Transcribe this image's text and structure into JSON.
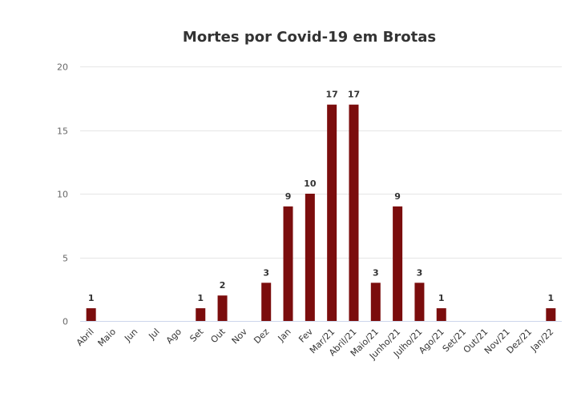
{
  "chart_data": {
    "type": "bar",
    "title": "Mortes por Covid-19 em Brotas",
    "xlabel": "",
    "ylabel": "",
    "ylim": [
      0,
      20
    ],
    "yticks": [
      0,
      5,
      10,
      15,
      20
    ],
    "grid": true,
    "categories": [
      "Abril",
      "Maio",
      "Jun",
      "Jul",
      "Ago",
      "Set",
      "Out",
      "Nov",
      "Dez",
      "Jan",
      "Fev",
      "Mar/21",
      "Abril/21",
      "Maio/21",
      "Junho/21",
      "Julho/21",
      "Ago/21",
      "Set/21",
      "Out/21",
      "Nov/21",
      "Dez/21",
      "Jan/22"
    ],
    "series": [
      {
        "values": [
          1,
          0,
          0,
          0,
          0,
          1,
          2,
          0,
          3,
          9,
          10,
          17,
          17,
          3,
          9,
          3,
          1,
          0,
          0,
          0,
          0,
          1
        ],
        "color": "#7b0d0d"
      }
    ]
  }
}
